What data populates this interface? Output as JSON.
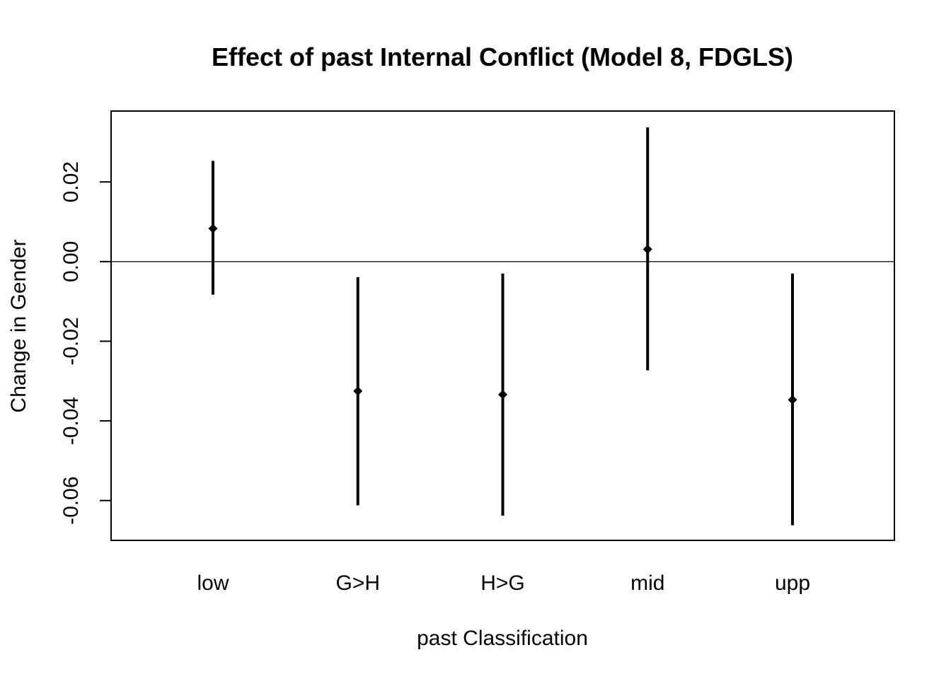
{
  "chart_data": {
    "type": "scatter",
    "title": "Effect of past Internal Conflict (Model 8, FDGLS)",
    "xlabel": "past Classification",
    "ylabel": "Change in Gender",
    "categories": [
      "low",
      "G>H",
      "H>G",
      "mid",
      "upp"
    ],
    "estimates": [
      0.0083,
      -0.0325,
      -0.0334,
      0.0031,
      -0.0347
    ],
    "ci_lower": [
      -0.0083,
      -0.0612,
      -0.0638,
      -0.0273,
      -0.0662
    ],
    "ci_upper": [
      0.0253,
      -0.0039,
      -0.003,
      0.0337,
      -0.003
    ],
    "ylim": [
      -0.07,
      0.0378
    ],
    "y_ticks": [
      -0.06,
      -0.04,
      -0.02,
      0.0,
      0.02
    ],
    "y_tick_labels": [
      "-0.06",
      "-0.04",
      "-0.02",
      "0.00",
      "0.02"
    ],
    "reference_line": 0,
    "grid": false,
    "legend": "none",
    "colors": {
      "line": "#000000",
      "marker": "#000000",
      "reference": "#000000",
      "background": "#ffffff"
    }
  }
}
